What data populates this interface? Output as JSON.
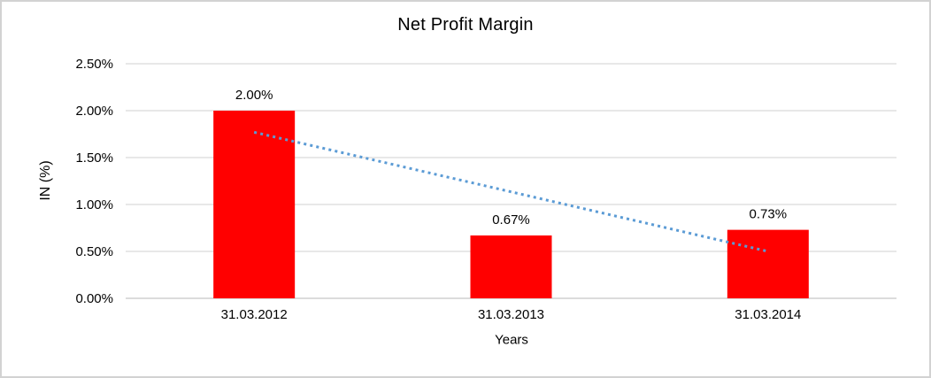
{
  "window": {
    "background": "#ffffff",
    "border_color": "#d2d2d2"
  },
  "chart_data": {
    "type": "bar",
    "title": "Net Profit Margin",
    "xlabel": "Years",
    "ylabel": "IN (%)",
    "categories": [
      "31.03.2012",
      "31.03.2013",
      "31.03.2014"
    ],
    "values": [
      2.0,
      0.67,
      0.73
    ],
    "data_labels": [
      "2.00%",
      "0.67%",
      "0.73%"
    ],
    "bar_color": "#ff0000",
    "ylim": [
      0,
      2.5
    ],
    "yticks": {
      "values": [
        0,
        0.5,
        1.0,
        1.5,
        2.0,
        2.5
      ],
      "labels": [
        "0.00%",
        "0.50%",
        "1.00%",
        "1.50%",
        "2.00%",
        "2.50%"
      ]
    },
    "grid": "horizontal",
    "gridline_color": "#d9d9d9",
    "axis_line_color": "#c6c6c6",
    "text_color": "#000000",
    "legend": "none",
    "trendline": {
      "style": "dotted",
      "color": "#5b9bd5",
      "start_value": 1.77,
      "end_value": 0.5
    }
  }
}
